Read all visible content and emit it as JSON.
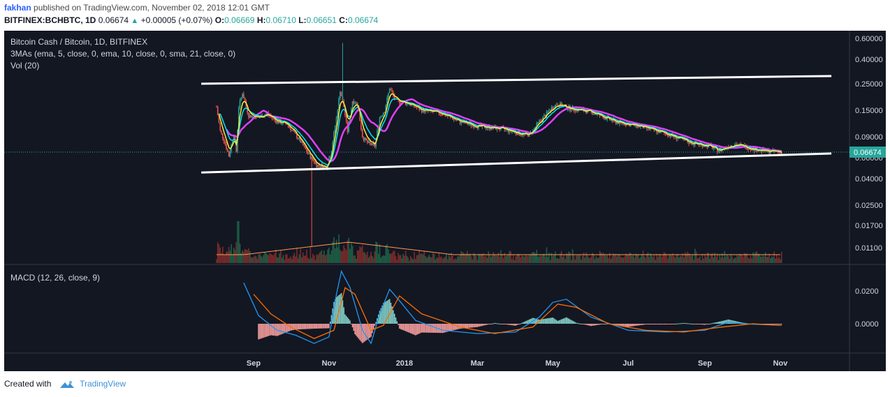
{
  "header": {
    "author": "fakhan",
    "published_text": "published on TradingView.com, November 02, 2018 12:01 GMT",
    "symbol": "BITFINEX:BCHBTC, 1D",
    "last": "0.06674",
    "change": "+0.00005 (+0.07%)",
    "o_label": "O:",
    "o_value": "0.06669",
    "h_label": "H:",
    "h_value": "0.06710",
    "l_label": "L:",
    "l_value": "0.06651",
    "c_label": "C:",
    "c_value": "0.06674"
  },
  "legend": {
    "title": "Bitcoin Cash / Bitcoin, 1D, BITFINEX",
    "mas": "3MAs (ema, 5, close, 0, ema, 10, close, 0, sma, 21, close, 0)",
    "vol": "Vol (20)",
    "macd": "MACD (12, 26, close, 9)"
  },
  "footer": {
    "created_with": "Created with",
    "brand": "TradingView"
  },
  "colors": {
    "bg": "#131722",
    "up": "#26a69a",
    "down": "#ef5350",
    "ema5": "#ffeb3b",
    "ema10": "#00e5ff",
    "sma21": "#e040fb",
    "macd": "#2196f3",
    "signal": "#ff6d00",
    "price_tag": "#26a69a"
  },
  "chart_data": {
    "type": "candlestick",
    "scale": "log",
    "x_ticks": [
      "Sep",
      "Nov",
      "2018",
      "Mar",
      "May",
      "Jul",
      "Sep",
      "Nov"
    ],
    "price_ticks": [
      "0.60000",
      "0.40000",
      "0.25000",
      "0.15000",
      "0.09000",
      "0.06000",
      "0.04000"
    ],
    "volume_ticks": [
      "0.02500",
      "0.01700",
      "0.01100"
    ],
    "macd_ticks": [
      "0.0200",
      "0.0000"
    ],
    "last_price_tag": "0.06674",
    "close_series": [
      [
        "2017-08-02",
        0.16
      ],
      [
        "2017-08-05",
        0.1
      ],
      [
        "2017-08-08",
        0.085
      ],
      [
        "2017-08-12",
        0.062
      ],
      [
        "2017-08-16",
        0.095
      ],
      [
        "2017-08-18",
        0.068
      ],
      [
        "2017-08-20",
        0.16
      ],
      [
        "2017-08-23",
        0.21
      ],
      [
        "2017-08-28",
        0.135
      ],
      [
        "2017-09-05",
        0.13
      ],
      [
        "2017-09-12",
        0.14
      ],
      [
        "2017-09-20",
        0.12
      ],
      [
        "2017-09-28",
        0.115
      ],
      [
        "2017-10-08",
        0.085
      ],
      [
        "2017-10-15",
        0.065
      ],
      [
        "2017-10-22",
        0.052
      ],
      [
        "2017-10-30",
        0.05
      ],
      [
        "2017-11-03",
        0.07
      ],
      [
        "2017-11-07",
        0.13
      ],
      [
        "2017-11-10",
        0.22
      ],
      [
        "2017-11-13",
        0.16
      ],
      [
        "2017-11-16",
        0.1
      ],
      [
        "2017-11-20",
        0.18
      ],
      [
        "2017-11-24",
        0.17
      ],
      [
        "2017-11-28",
        0.09
      ],
      [
        "2017-12-02",
        0.08
      ],
      [
        "2017-12-08",
        0.075
      ],
      [
        "2017-12-12",
        0.13
      ],
      [
        "2017-12-16",
        0.15
      ],
      [
        "2017-12-20",
        0.23
      ],
      [
        "2017-12-25",
        0.18
      ],
      [
        "2018-01-05",
        0.17
      ],
      [
        "2018-01-15",
        0.15
      ],
      [
        "2018-02-01",
        0.14
      ],
      [
        "2018-02-15",
        0.12
      ],
      [
        "2018-03-01",
        0.11
      ],
      [
        "2018-03-20",
        0.105
      ],
      [
        "2018-04-05",
        0.095
      ],
      [
        "2018-04-12",
        0.093
      ],
      [
        "2018-04-20",
        0.12
      ],
      [
        "2018-05-01",
        0.16
      ],
      [
        "2018-05-05",
        0.17
      ],
      [
        "2018-05-15",
        0.155
      ],
      [
        "2018-06-01",
        0.145
      ],
      [
        "2018-06-20",
        0.12
      ],
      [
        "2018-07-10",
        0.11
      ],
      [
        "2018-08-01",
        0.095
      ],
      [
        "2018-08-20",
        0.08
      ],
      [
        "2018-09-05",
        0.075
      ],
      [
        "2018-09-12",
        0.068
      ],
      [
        "2018-09-20",
        0.075
      ],
      [
        "2018-09-25",
        0.078
      ],
      [
        "2018-10-10",
        0.071
      ],
      [
        "2018-10-20",
        0.068
      ],
      [
        "2018-11-02",
        0.06674
      ]
    ],
    "spikes": [
      [
        "2017-11-12",
        0.55
      ],
      [
        "2017-10-18",
        0.0107
      ]
    ],
    "channel": {
      "upper": [
        [
          "2017-08-01",
          0.25
        ],
        [
          "2018-12-01",
          0.29
        ]
      ],
      "lower": [
        [
          "2017-08-01",
          0.045
        ],
        [
          "2018-12-01",
          0.065
        ]
      ]
    },
    "macd": [
      [
        "2017-08-24",
        0.025
      ],
      [
        "2017-09-05",
        0.005
      ],
      [
        "2017-09-20",
        -0.004
      ],
      [
        "2017-10-05",
        -0.007
      ],
      [
        "2017-10-20",
        -0.012
      ],
      [
        "2017-11-01",
        -0.008
      ],
      [
        "2017-11-07",
        0.018
      ],
      [
        "2017-11-11",
        0.032
      ],
      [
        "2017-11-18",
        0.022
      ],
      [
        "2017-11-28",
        -0.004
      ],
      [
        "2017-12-05",
        -0.012
      ],
      [
        "2017-12-12",
        0.006
      ],
      [
        "2017-12-20",
        0.021
      ],
      [
        "2017-12-28",
        0.014
      ],
      [
        "2018-01-10",
        0.002
      ],
      [
        "2018-02-01",
        -0.004
      ],
      [
        "2018-03-01",
        -0.006
      ],
      [
        "2018-04-01",
        -0.005
      ],
      [
        "2018-04-20",
        0.004
      ],
      [
        "2018-05-01",
        0.013
      ],
      [
        "2018-05-12",
        0.015
      ],
      [
        "2018-06-01",
        0.004
      ],
      [
        "2018-07-01",
        -0.004
      ],
      [
        "2018-08-01",
        -0.005
      ],
      [
        "2018-09-01",
        -0.004
      ],
      [
        "2018-09-20",
        0.001
      ],
      [
        "2018-10-01",
        0.0
      ],
      [
        "2018-11-02",
        -0.001
      ]
    ],
    "signal": [
      [
        "2017-09-01",
        0.018
      ],
      [
        "2017-09-15",
        0.006
      ],
      [
        "2017-10-01",
        -0.002
      ],
      [
        "2017-10-20",
        -0.009
      ],
      [
        "2017-11-05",
        -0.004
      ],
      [
        "2017-11-14",
        0.022
      ],
      [
        "2017-11-22",
        0.018
      ],
      [
        "2017-12-05",
        -0.004
      ],
      [
        "2017-12-15",
        -0.001
      ],
      [
        "2017-12-28",
        0.017
      ],
      [
        "2018-01-15",
        0.006
      ],
      [
        "2018-02-15",
        -0.002
      ],
      [
        "2018-03-15",
        -0.006
      ],
      [
        "2018-04-15",
        -0.002
      ],
      [
        "2018-05-05",
        0.012
      ],
      [
        "2018-05-20",
        0.01
      ],
      [
        "2018-06-15",
        0.0
      ],
      [
        "2018-07-15",
        -0.004
      ],
      [
        "2018-08-15",
        -0.005
      ],
      [
        "2018-09-15",
        -0.002
      ],
      [
        "2018-10-10",
        0.0
      ],
      [
        "2018-11-02",
        -0.001
      ]
    ],
    "volume_note": "Vol (20)"
  }
}
